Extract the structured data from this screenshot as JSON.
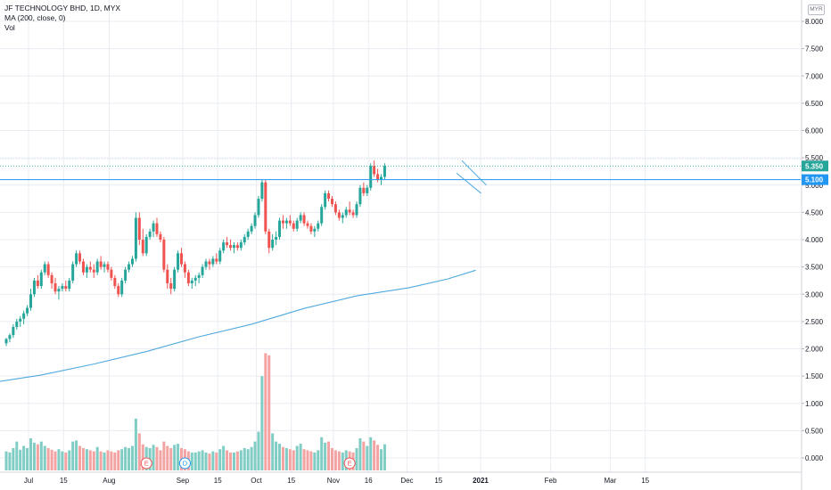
{
  "legend": {
    "title": "JF TECHNOLOGY BHD, 1D, MYX",
    "ma": "MA (200, close, 0)",
    "vol": "Vol"
  },
  "currency_label": "MYR",
  "colors": {
    "up": "#26a69a",
    "down": "#ef5350",
    "vol_up": "#7fcdc4",
    "vol_down": "#f4a3a3",
    "ma": "#4fa9de",
    "line": "#2196f3",
    "last_price_bg": "#26a69a",
    "level_bg": "#2196f3"
  },
  "chart_data": {
    "type": "candlestick",
    "y_axis": {
      "min": -0.15,
      "max": 8.2,
      "ticks": [
        "8.000",
        "7.500",
        "7.000",
        "6.500",
        "6.000",
        "5.500",
        "5.000",
        "4.500",
        "4.000",
        "3.500",
        "3.000",
        "2.500",
        "2.000",
        "1.500",
        "1.000",
        "0.500",
        "0.000"
      ]
    },
    "x_ticks": [
      {
        "label": "Jul",
        "bold": false,
        "day": 0
      },
      {
        "label": "15",
        "bold": false,
        "day": 10
      },
      {
        "label": "Aug",
        "bold": false,
        "day": 23
      },
      {
        "label": "Sep",
        "bold": false,
        "day": 44
      },
      {
        "label": "15",
        "bold": false,
        "day": 54
      },
      {
        "label": "Oct",
        "bold": false,
        "day": 65
      },
      {
        "label": "15",
        "bold": false,
        "day": 75
      },
      {
        "label": "Nov",
        "bold": false,
        "day": 87
      },
      {
        "label": "16",
        "bold": false,
        "day": 97
      },
      {
        "label": "Dec",
        "bold": false,
        "day": 108
      },
      {
        "label": "15",
        "bold": false,
        "day": 117
      },
      {
        "label": "2021",
        "bold": true,
        "day": 129
      },
      {
        "label": "Feb",
        "bold": false,
        "day": 149
      },
      {
        "label": "Mar",
        "bold": false,
        "day": 166
      },
      {
        "label": "15",
        "bold": false,
        "day": 176
      }
    ],
    "last_price": "5.350",
    "horizontal_level": "5.100",
    "horizontal_level_value": 5.1,
    "last_price_value": 5.35,
    "events": [
      {
        "label": "E",
        "day": 40,
        "color": "#ef5350"
      },
      {
        "label": "D",
        "day": 51,
        "color": "#2196f3"
      },
      {
        "label": "E",
        "day": 98,
        "color": "#ef5350"
      }
    ],
    "ma_series": [
      [
        -2,
        1.4
      ],
      [
        10,
        1.52
      ],
      [
        25,
        1.72
      ],
      [
        40,
        1.95
      ],
      [
        55,
        2.22
      ],
      [
        70,
        2.45
      ],
      [
        85,
        2.74
      ],
      [
        100,
        2.97
      ],
      [
        115,
        3.12
      ],
      [
        126,
        3.28
      ],
      [
        134,
        3.44
      ]
    ],
    "trendlines": [
      [
        [
          130,
          5.45
        ],
        [
          137,
          5.0
        ]
      ],
      [
        [
          128.5,
          5.22
        ],
        [
          135.5,
          4.85
        ]
      ]
    ],
    "candles": [
      [
        2.1,
        2.2,
        2.05,
        2.18,
        0.12
      ],
      [
        2.18,
        2.28,
        2.12,
        2.25,
        0.1
      ],
      [
        2.25,
        2.45,
        2.2,
        2.4,
        0.18
      ],
      [
        2.4,
        2.55,
        2.35,
        2.5,
        0.3
      ],
      [
        2.5,
        2.6,
        2.4,
        2.55,
        0.15
      ],
      [
        2.55,
        2.7,
        2.45,
        2.65,
        0.22
      ],
      [
        2.65,
        2.8,
        2.6,
        2.75,
        0.18
      ],
      [
        2.75,
        3.1,
        2.7,
        3.0,
        0.36
      ],
      [
        3.0,
        3.3,
        2.95,
        3.25,
        0.28
      ],
      [
        3.25,
        3.35,
        3.1,
        3.15,
        0.25
      ],
      [
        3.15,
        3.45,
        3.1,
        3.4,
        0.3
      ],
      [
        3.4,
        3.6,
        3.35,
        3.55,
        0.22
      ],
      [
        3.55,
        3.6,
        3.3,
        3.35,
        0.18
      ],
      [
        3.35,
        3.4,
        3.1,
        3.2,
        0.15
      ],
      [
        3.2,
        3.3,
        3.0,
        3.05,
        0.12
      ],
      [
        3.05,
        3.15,
        2.9,
        3.1,
        0.16
      ],
      [
        3.1,
        3.2,
        3.05,
        3.15,
        0.12
      ],
      [
        3.15,
        3.25,
        3.05,
        3.1,
        0.1
      ],
      [
        3.1,
        3.3,
        3.05,
        3.25,
        0.14
      ],
      [
        3.25,
        3.6,
        3.2,
        3.55,
        0.3
      ],
      [
        3.55,
        3.8,
        3.5,
        3.75,
        0.32
      ],
      [
        3.75,
        3.8,
        3.55,
        3.6,
        0.22
      ],
      [
        3.6,
        3.65,
        3.35,
        3.4,
        0.18
      ],
      [
        3.4,
        3.55,
        3.3,
        3.5,
        0.16
      ],
      [
        3.5,
        3.6,
        3.4,
        3.45,
        0.14
      ],
      [
        3.45,
        3.55,
        3.3,
        3.4,
        0.12
      ],
      [
        3.4,
        3.65,
        3.35,
        3.6,
        0.2
      ],
      [
        3.6,
        3.7,
        3.45,
        3.5,
        0.12
      ],
      [
        3.5,
        3.6,
        3.4,
        3.55,
        0.1
      ],
      [
        3.55,
        3.6,
        3.4,
        3.45,
        0.14
      ],
      [
        3.45,
        3.5,
        3.25,
        3.3,
        0.12
      ],
      [
        3.3,
        3.35,
        3.1,
        3.15,
        0.1
      ],
      [
        3.15,
        3.2,
        2.95,
        3.0,
        0.14
      ],
      [
        3.0,
        3.3,
        2.95,
        3.25,
        0.16
      ],
      [
        3.25,
        3.5,
        3.2,
        3.45,
        0.2
      ],
      [
        3.45,
        3.6,
        3.4,
        3.55,
        0.18
      ],
      [
        3.55,
        3.7,
        3.5,
        3.65,
        0.22
      ],
      [
        3.65,
        4.5,
        3.6,
        4.4,
        0.72
      ],
      [
        4.4,
        4.5,
        3.9,
        4.0,
        0.45
      ],
      [
        4.0,
        4.2,
        3.7,
        3.75,
        0.25
      ],
      [
        3.75,
        4.1,
        3.7,
        4.05,
        0.2
      ],
      [
        4.05,
        4.2,
        4.0,
        4.15,
        0.18
      ],
      [
        4.15,
        4.35,
        4.05,
        4.3,
        0.24
      ],
      [
        4.3,
        4.4,
        4.05,
        4.1,
        0.2
      ],
      [
        4.1,
        4.15,
        3.95,
        4.0,
        0.14
      ],
      [
        4.0,
        4.05,
        3.4,
        3.45,
        0.3
      ],
      [
        3.45,
        3.55,
        3.1,
        3.2,
        0.22
      ],
      [
        3.2,
        3.3,
        3.0,
        3.1,
        0.18
      ],
      [
        3.1,
        3.5,
        3.05,
        3.45,
        0.24
      ],
      [
        3.45,
        3.8,
        3.4,
        3.75,
        0.26
      ],
      [
        3.75,
        3.85,
        3.5,
        3.55,
        0.18
      ],
      [
        3.55,
        3.6,
        3.3,
        3.4,
        0.16
      ],
      [
        3.4,
        3.45,
        3.15,
        3.2,
        0.12
      ],
      [
        3.2,
        3.3,
        3.1,
        3.25,
        0.1
      ],
      [
        3.25,
        3.35,
        3.15,
        3.3,
        0.1
      ],
      [
        3.3,
        3.4,
        3.2,
        3.35,
        0.12
      ],
      [
        3.35,
        3.55,
        3.3,
        3.5,
        0.14
      ],
      [
        3.5,
        3.65,
        3.45,
        3.6,
        0.1
      ],
      [
        3.6,
        3.65,
        3.45,
        3.55,
        0.08
      ],
      [
        3.55,
        3.7,
        3.5,
        3.65,
        0.12
      ],
      [
        3.65,
        3.75,
        3.55,
        3.6,
        0.1
      ],
      [
        3.6,
        3.85,
        3.55,
        3.8,
        0.16
      ],
      [
        3.8,
        4.0,
        3.75,
        3.95,
        0.22
      ],
      [
        3.95,
        4.05,
        3.85,
        3.9,
        0.14
      ],
      [
        3.9,
        4.0,
        3.8,
        3.85,
        0.1
      ],
      [
        3.85,
        3.95,
        3.75,
        3.9,
        0.1
      ],
      [
        3.9,
        3.95,
        3.8,
        3.85,
        0.12
      ],
      [
        3.85,
        4.0,
        3.8,
        3.95,
        0.14
      ],
      [
        3.95,
        4.1,
        3.9,
        4.05,
        0.18
      ],
      [
        4.05,
        4.2,
        4.0,
        4.15,
        0.16
      ],
      [
        4.15,
        4.3,
        4.1,
        4.25,
        0.2
      ],
      [
        4.25,
        4.5,
        4.2,
        4.45,
        0.3
      ],
      [
        4.45,
        4.8,
        4.4,
        4.75,
        0.48
      ],
      [
        4.75,
        5.1,
        4.7,
        5.05,
        1.5
      ],
      [
        5.05,
        5.1,
        4.1,
        4.15,
        1.92
      ],
      [
        4.15,
        4.2,
        3.75,
        3.85,
        1.88
      ],
      [
        3.85,
        4.1,
        3.8,
        4.0,
        0.45
      ],
      [
        4.0,
        4.15,
        3.9,
        4.05,
        0.3
      ],
      [
        4.05,
        4.4,
        4.0,
        4.35,
        0.26
      ],
      [
        4.35,
        4.45,
        4.2,
        4.3,
        0.2
      ],
      [
        4.3,
        4.4,
        4.2,
        4.35,
        0.18
      ],
      [
        4.35,
        4.45,
        4.25,
        4.3,
        0.16
      ],
      [
        4.3,
        4.35,
        4.15,
        4.2,
        0.14
      ],
      [
        4.2,
        4.4,
        4.15,
        4.35,
        0.22
      ],
      [
        4.35,
        4.5,
        4.3,
        4.45,
        0.26
      ],
      [
        4.45,
        4.5,
        4.25,
        4.3,
        0.16
      ],
      [
        4.3,
        4.35,
        4.2,
        4.25,
        0.14
      ],
      [
        4.25,
        4.3,
        4.1,
        4.15,
        0.12
      ],
      [
        4.15,
        4.25,
        4.05,
        4.2,
        0.1
      ],
      [
        4.2,
        4.35,
        4.15,
        4.3,
        0.14
      ],
      [
        4.3,
        4.65,
        4.25,
        4.6,
        0.38
      ],
      [
        4.6,
        4.9,
        4.55,
        4.85,
        0.28
      ],
      [
        4.85,
        4.9,
        4.7,
        4.75,
        0.3
      ],
      [
        4.75,
        4.8,
        4.6,
        4.65,
        0.18
      ],
      [
        4.65,
        4.7,
        4.45,
        4.5,
        0.14
      ],
      [
        4.5,
        4.55,
        4.35,
        4.4,
        0.12
      ],
      [
        4.4,
        4.5,
        4.3,
        4.45,
        0.1
      ],
      [
        4.45,
        4.6,
        4.4,
        4.55,
        0.14
      ],
      [
        4.55,
        4.7,
        4.45,
        4.5,
        0.12
      ],
      [
        4.5,
        4.55,
        4.4,
        4.45,
        0.1
      ],
      [
        4.45,
        4.7,
        4.4,
        4.65,
        0.18
      ],
      [
        4.65,
        5.0,
        4.6,
        4.95,
        0.36
      ],
      [
        4.95,
        5.05,
        4.8,
        4.85,
        0.3
      ],
      [
        4.85,
        5.0,
        4.8,
        4.95,
        0.22
      ],
      [
        4.95,
        5.4,
        4.9,
        5.35,
        0.38
      ],
      [
        5.35,
        5.45,
        5.15,
        5.2,
        0.32
      ],
      [
        5.2,
        5.3,
        5.05,
        5.1,
        0.24
      ],
      [
        5.1,
        5.2,
        5.0,
        5.15,
        0.16
      ],
      [
        5.15,
        5.4,
        5.1,
        5.35,
        0.25
      ]
    ]
  }
}
